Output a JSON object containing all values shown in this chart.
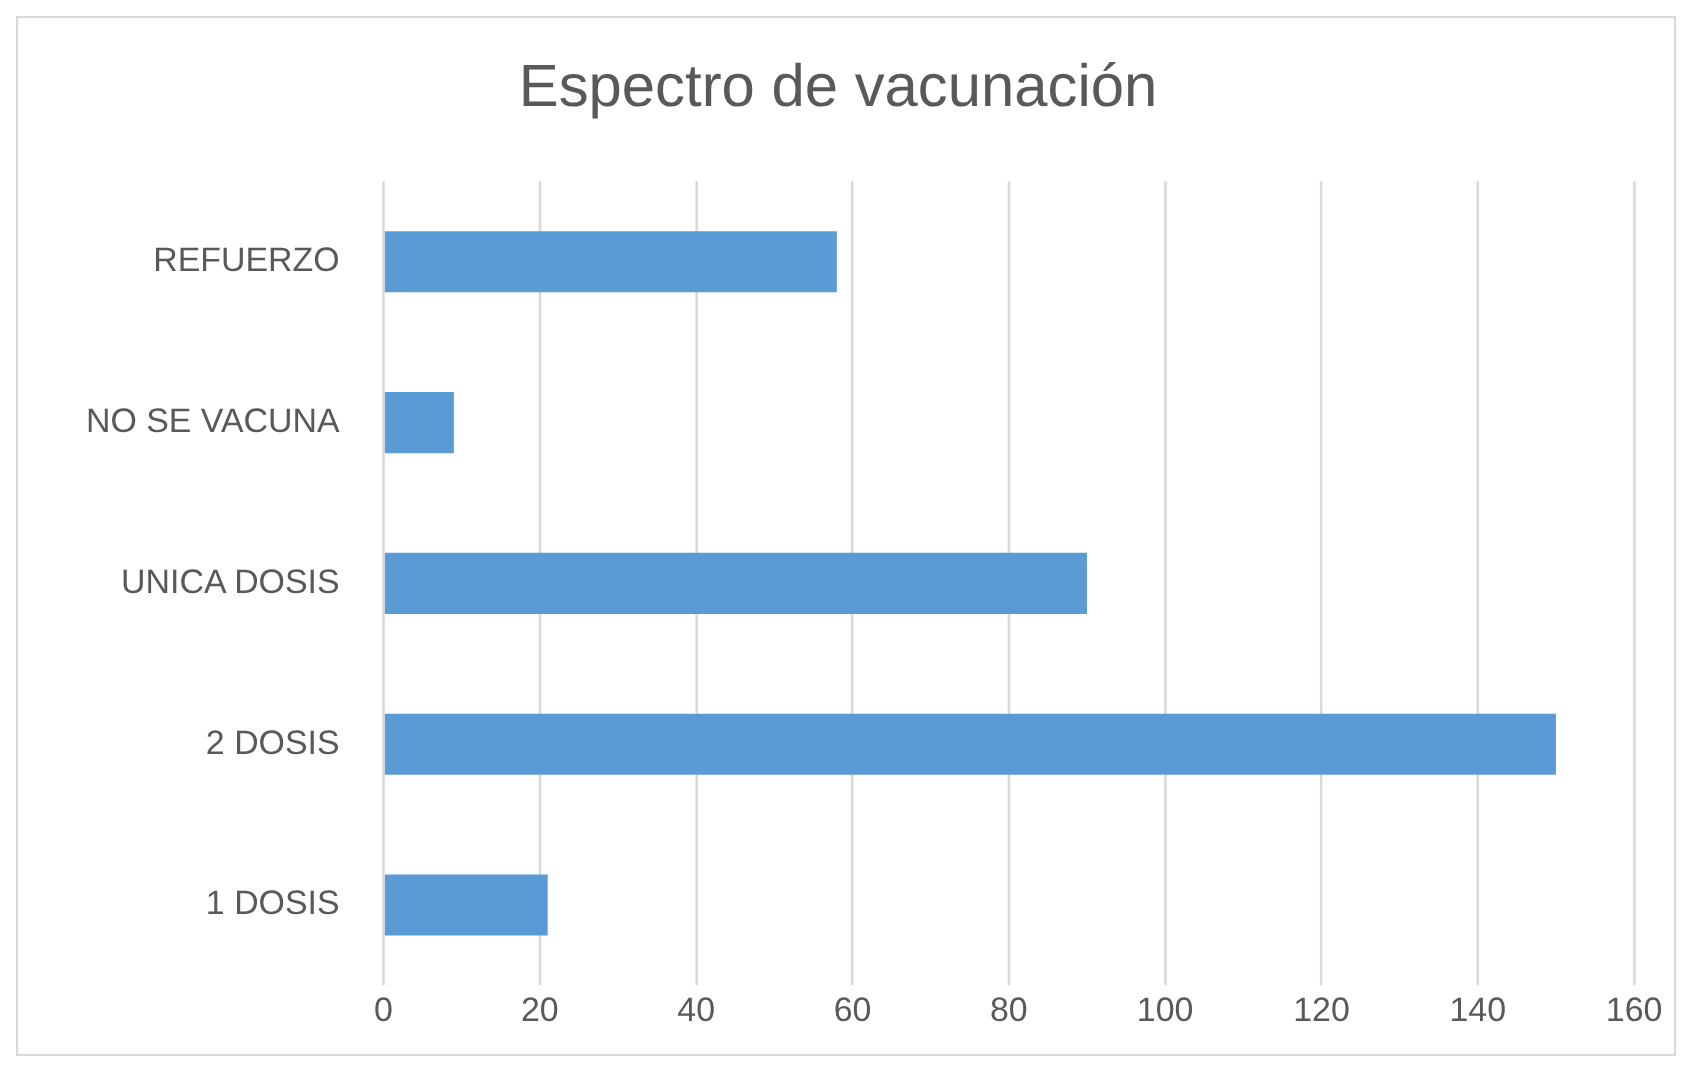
{
  "chart_data": {
    "type": "bar",
    "orientation": "horizontal",
    "title": "Espectro de vacunación",
    "categories": [
      "REFUERZO",
      "NO SE VACUNA",
      "UNICA DOSIS",
      "2 DOSIS",
      "1 DOSIS"
    ],
    "values": [
      58,
      9,
      90,
      150,
      21
    ],
    "color": "#5b9bd5",
    "xlim": [
      0,
      160
    ],
    "xticks": [
      0,
      20,
      40,
      60,
      80,
      100,
      120,
      140,
      160
    ],
    "grid": "x",
    "legend": false
  }
}
